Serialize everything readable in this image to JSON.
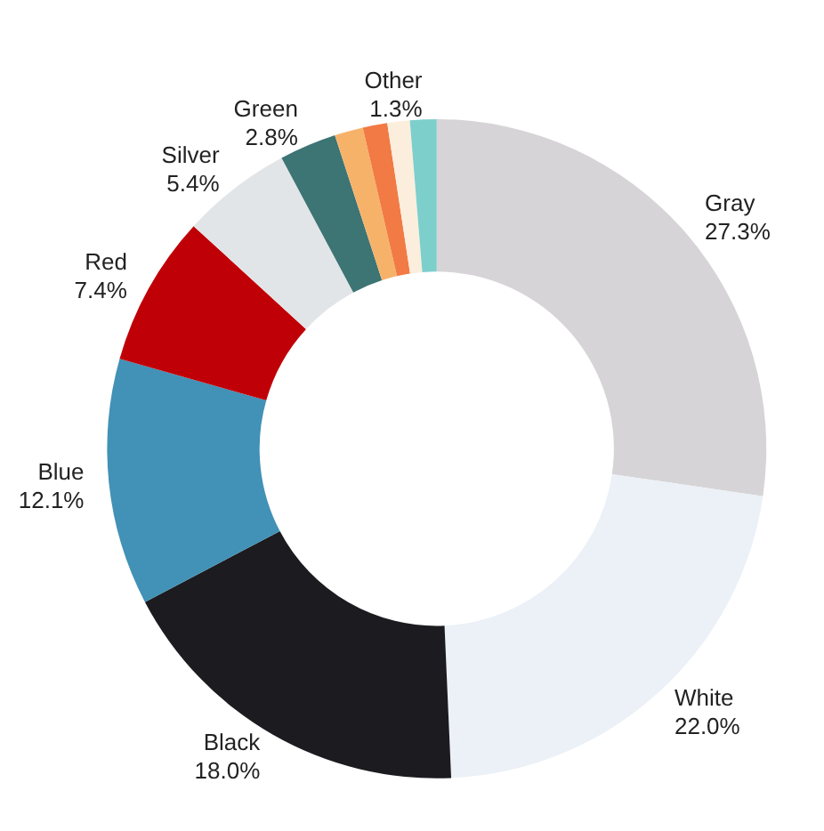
{
  "chart_data": {
    "type": "donut",
    "categories": [
      "Gray",
      "White",
      "Black",
      "Blue",
      "Red",
      "Silver",
      "Green",
      null,
      null,
      null,
      "Other"
    ],
    "values": [
      27.3,
      22.0,
      18.0,
      12.1,
      7.4,
      5.4,
      2.8,
      1.4,
      1.2,
      1.1,
      1.3
    ],
    "value_labels": [
      "27.3%",
      "22.0%",
      "18.0%",
      "12.1%",
      "7.4%",
      "5.4%",
      "2.8%",
      null,
      null,
      null,
      "1.3%"
    ],
    "colors": [
      "#d6d4d6",
      "#ebf1f7",
      "#1c1b1f",
      "#4291b6",
      "#c00007",
      "#e2e5e8",
      "#3d7474",
      "#f7b26a",
      "#f27a44",
      "#fbeedd",
      "#7dcfcc"
    ],
    "legend": false
  }
}
